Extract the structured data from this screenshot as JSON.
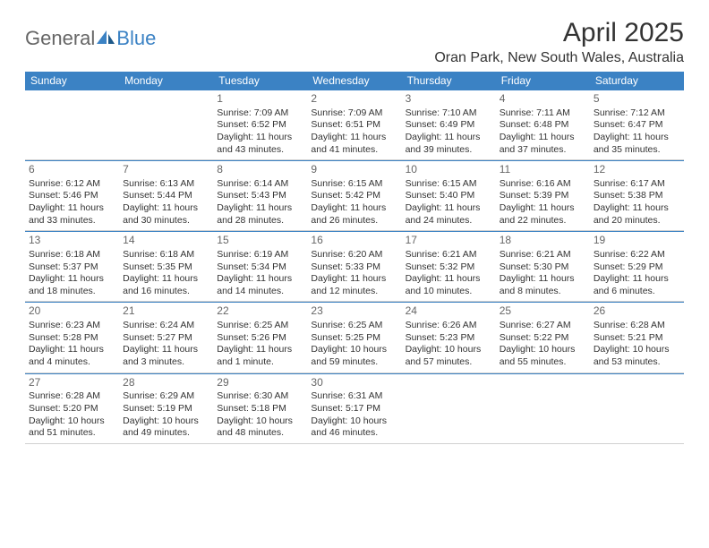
{
  "logo": {
    "part1": "General",
    "part2": "Blue"
  },
  "title": "April 2025",
  "location": "Oran Park, New South Wales, Australia",
  "header_bg": "#3b82c4",
  "day_headers": [
    "Sunday",
    "Monday",
    "Tuesday",
    "Wednesday",
    "Thursday",
    "Friday",
    "Saturday"
  ],
  "weeks": [
    [
      null,
      null,
      {
        "n": "1",
        "sr": "Sunrise: 7:09 AM",
        "ss": "Sunset: 6:52 PM",
        "dl": "Daylight: 11 hours and 43 minutes."
      },
      {
        "n": "2",
        "sr": "Sunrise: 7:09 AM",
        "ss": "Sunset: 6:51 PM",
        "dl": "Daylight: 11 hours and 41 minutes."
      },
      {
        "n": "3",
        "sr": "Sunrise: 7:10 AM",
        "ss": "Sunset: 6:49 PM",
        "dl": "Daylight: 11 hours and 39 minutes."
      },
      {
        "n": "4",
        "sr": "Sunrise: 7:11 AM",
        "ss": "Sunset: 6:48 PM",
        "dl": "Daylight: 11 hours and 37 minutes."
      },
      {
        "n": "5",
        "sr": "Sunrise: 7:12 AM",
        "ss": "Sunset: 6:47 PM",
        "dl": "Daylight: 11 hours and 35 minutes."
      }
    ],
    [
      {
        "n": "6",
        "sr": "Sunrise: 6:12 AM",
        "ss": "Sunset: 5:46 PM",
        "dl": "Daylight: 11 hours and 33 minutes."
      },
      {
        "n": "7",
        "sr": "Sunrise: 6:13 AM",
        "ss": "Sunset: 5:44 PM",
        "dl": "Daylight: 11 hours and 30 minutes."
      },
      {
        "n": "8",
        "sr": "Sunrise: 6:14 AM",
        "ss": "Sunset: 5:43 PM",
        "dl": "Daylight: 11 hours and 28 minutes."
      },
      {
        "n": "9",
        "sr": "Sunrise: 6:15 AM",
        "ss": "Sunset: 5:42 PM",
        "dl": "Daylight: 11 hours and 26 minutes."
      },
      {
        "n": "10",
        "sr": "Sunrise: 6:15 AM",
        "ss": "Sunset: 5:40 PM",
        "dl": "Daylight: 11 hours and 24 minutes."
      },
      {
        "n": "11",
        "sr": "Sunrise: 6:16 AM",
        "ss": "Sunset: 5:39 PM",
        "dl": "Daylight: 11 hours and 22 minutes."
      },
      {
        "n": "12",
        "sr": "Sunrise: 6:17 AM",
        "ss": "Sunset: 5:38 PM",
        "dl": "Daylight: 11 hours and 20 minutes."
      }
    ],
    [
      {
        "n": "13",
        "sr": "Sunrise: 6:18 AM",
        "ss": "Sunset: 5:37 PM",
        "dl": "Daylight: 11 hours and 18 minutes."
      },
      {
        "n": "14",
        "sr": "Sunrise: 6:18 AM",
        "ss": "Sunset: 5:35 PM",
        "dl": "Daylight: 11 hours and 16 minutes."
      },
      {
        "n": "15",
        "sr": "Sunrise: 6:19 AM",
        "ss": "Sunset: 5:34 PM",
        "dl": "Daylight: 11 hours and 14 minutes."
      },
      {
        "n": "16",
        "sr": "Sunrise: 6:20 AM",
        "ss": "Sunset: 5:33 PM",
        "dl": "Daylight: 11 hours and 12 minutes."
      },
      {
        "n": "17",
        "sr": "Sunrise: 6:21 AM",
        "ss": "Sunset: 5:32 PM",
        "dl": "Daylight: 11 hours and 10 minutes."
      },
      {
        "n": "18",
        "sr": "Sunrise: 6:21 AM",
        "ss": "Sunset: 5:30 PM",
        "dl": "Daylight: 11 hours and 8 minutes."
      },
      {
        "n": "19",
        "sr": "Sunrise: 6:22 AM",
        "ss": "Sunset: 5:29 PM",
        "dl": "Daylight: 11 hours and 6 minutes."
      }
    ],
    [
      {
        "n": "20",
        "sr": "Sunrise: 6:23 AM",
        "ss": "Sunset: 5:28 PM",
        "dl": "Daylight: 11 hours and 4 minutes."
      },
      {
        "n": "21",
        "sr": "Sunrise: 6:24 AM",
        "ss": "Sunset: 5:27 PM",
        "dl": "Daylight: 11 hours and 3 minutes."
      },
      {
        "n": "22",
        "sr": "Sunrise: 6:25 AM",
        "ss": "Sunset: 5:26 PM",
        "dl": "Daylight: 11 hours and 1 minute."
      },
      {
        "n": "23",
        "sr": "Sunrise: 6:25 AM",
        "ss": "Sunset: 5:25 PM",
        "dl": "Daylight: 10 hours and 59 minutes."
      },
      {
        "n": "24",
        "sr": "Sunrise: 6:26 AM",
        "ss": "Sunset: 5:23 PM",
        "dl": "Daylight: 10 hours and 57 minutes."
      },
      {
        "n": "25",
        "sr": "Sunrise: 6:27 AM",
        "ss": "Sunset: 5:22 PM",
        "dl": "Daylight: 10 hours and 55 minutes."
      },
      {
        "n": "26",
        "sr": "Sunrise: 6:28 AM",
        "ss": "Sunset: 5:21 PM",
        "dl": "Daylight: 10 hours and 53 minutes."
      }
    ],
    [
      {
        "n": "27",
        "sr": "Sunrise: 6:28 AM",
        "ss": "Sunset: 5:20 PM",
        "dl": "Daylight: 10 hours and 51 minutes."
      },
      {
        "n": "28",
        "sr": "Sunrise: 6:29 AM",
        "ss": "Sunset: 5:19 PM",
        "dl": "Daylight: 10 hours and 49 minutes."
      },
      {
        "n": "29",
        "sr": "Sunrise: 6:30 AM",
        "ss": "Sunset: 5:18 PM",
        "dl": "Daylight: 10 hours and 48 minutes."
      },
      {
        "n": "30",
        "sr": "Sunrise: 6:31 AM",
        "ss": "Sunset: 5:17 PM",
        "dl": "Daylight: 10 hours and 46 minutes."
      },
      null,
      null,
      null
    ]
  ]
}
